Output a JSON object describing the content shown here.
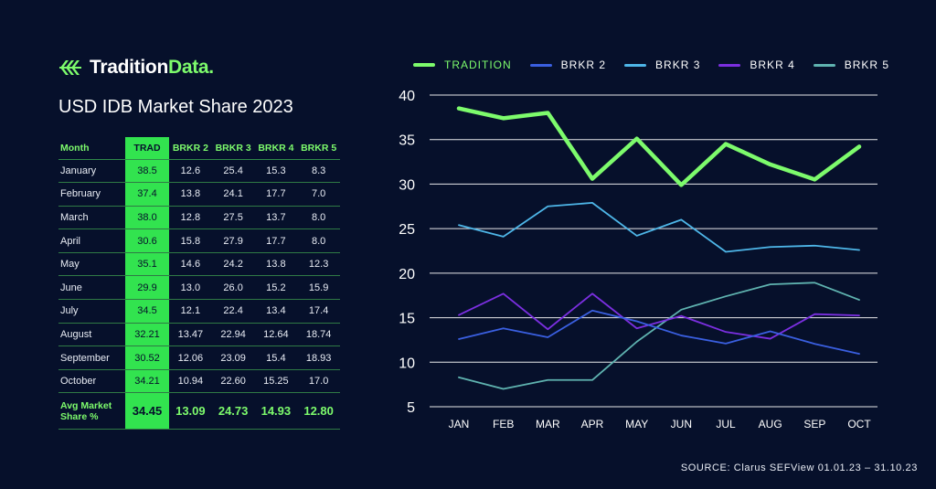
{
  "brand": {
    "name_main": "Tradition",
    "name_accent": "Data."
  },
  "page_title": "USD IDB Market Share 2023",
  "table": {
    "headers": [
      "Month",
      "TRAD",
      "BRKR 2",
      "BRKR 3",
      "BRKR 4",
      "BRKR 5"
    ],
    "rows": [
      [
        "January",
        "38.5",
        "12.6",
        "25.4",
        "15.3",
        "8.3"
      ],
      [
        "February",
        "37.4",
        "13.8",
        "24.1",
        "17.7",
        "7.0"
      ],
      [
        "March",
        "38.0",
        "12.8",
        "27.5",
        "13.7",
        "8.0"
      ],
      [
        "April",
        "30.6",
        "15.8",
        "27.9",
        "17.7",
        "8.0"
      ],
      [
        "May",
        "35.1",
        "14.6",
        "24.2",
        "13.8",
        "12.3"
      ],
      [
        "June",
        "29.9",
        "13.0",
        "26.0",
        "15.2",
        "15.9"
      ],
      [
        "July",
        "34.5",
        "12.1",
        "22.4",
        "13.4",
        "17.4"
      ],
      [
        "August",
        "32.21",
        "13.47",
        "22.94",
        "12.64",
        "18.74"
      ],
      [
        "September",
        "30.52",
        "12.06",
        "23.09",
        "15.4",
        "18.93"
      ],
      [
        "October",
        "34.21",
        "10.94",
        "22.60",
        "15.25",
        "17.0"
      ]
    ],
    "avg_row": [
      "Avg Market Share %",
      "34.45",
      "13.09",
      "24.73",
      "14.93",
      "12.80"
    ]
  },
  "source": "SOURCE: Clarus SEFView 01.01.23 – 31.10.23",
  "chart_data": {
    "type": "line",
    "categories": [
      "JAN",
      "FEB",
      "MAR",
      "APR",
      "MAY",
      "JUN",
      "JUL",
      "AUG",
      "SEP",
      "OCT"
    ],
    "ylim": [
      5,
      40
    ],
    "yticks": [
      5,
      10,
      15,
      20,
      25,
      30,
      35,
      40
    ],
    "grid": true,
    "legend_placement": "top",
    "series": [
      {
        "name": "TRADITION",
        "color": "#7dfb6c",
        "values": [
          38.5,
          37.4,
          38.0,
          30.6,
          35.1,
          29.9,
          34.5,
          32.21,
          30.52,
          34.21
        ]
      },
      {
        "name": "BRKR 2",
        "color": "#3a5fe0",
        "values": [
          12.6,
          13.8,
          12.8,
          15.8,
          14.6,
          13.0,
          12.1,
          13.47,
          12.06,
          10.94
        ]
      },
      {
        "name": "BRKR 3",
        "color": "#4eb6e8",
        "values": [
          25.4,
          24.1,
          27.5,
          27.9,
          24.2,
          26.0,
          22.4,
          22.94,
          23.09,
          22.6
        ]
      },
      {
        "name": "BRKR 4",
        "color": "#7b2fe0",
        "values": [
          15.3,
          17.7,
          13.7,
          17.7,
          13.8,
          15.2,
          13.4,
          12.64,
          15.4,
          15.25
        ]
      },
      {
        "name": "BRKR 5",
        "color": "#5fb3b0",
        "values": [
          8.3,
          7.0,
          8.0,
          8.0,
          12.3,
          15.9,
          17.4,
          18.74,
          18.93,
          17.0
        ]
      }
    ]
  }
}
